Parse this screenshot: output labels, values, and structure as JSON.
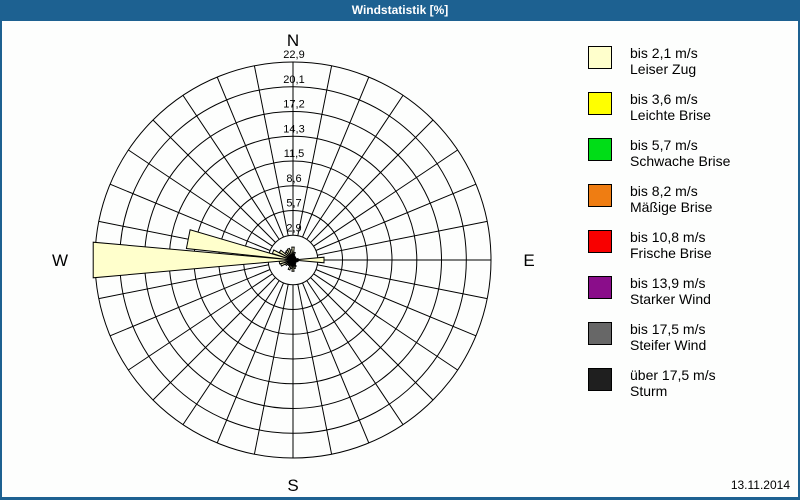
{
  "window": {
    "title": "Windstatistik [%]",
    "date": "13.11.2014"
  },
  "legend": {
    "items": [
      {
        "color": "#ffffcc",
        "speed": "bis 2,1 m/s",
        "name": "Leiser Zug"
      },
      {
        "color": "#ffff00",
        "speed": "bis 3,6 m/s",
        "name": "Leichte Brise"
      },
      {
        "color": "#00dd17",
        "speed": "bis 5,7 m/s",
        "name": "Schwache Brise"
      },
      {
        "color": "#ef7d12",
        "speed": "bis 8,2 m/s",
        "name": "Mäßige Brise"
      },
      {
        "color": "#f80000",
        "speed": "bis 10,8 m/s",
        "name": "Frische Brise"
      },
      {
        "color": "#8a0d8a",
        "speed": "bis 13,9 m/s",
        "name": "Starker Wind"
      },
      {
        "color": "#676767",
        "speed": "bis 17,5 m/s",
        "name": "Steifer Wind"
      },
      {
        "color": "#1f1f1f",
        "speed": "über 17,5 m/s",
        "name": "Sturm",
        "pattern": "dots"
      }
    ]
  },
  "chart_data": {
    "type": "wind-rose-polar-bar",
    "title": "Windstatistik [%]",
    "unit": "%",
    "sectors": 32,
    "direction_step_deg": 11.25,
    "direction_convention": "index 0 = N, clockwise",
    "rings": 8,
    "scale_max": 22.9,
    "ring_values": [
      2.9,
      5.7,
      8.6,
      11.5,
      14.3,
      17.2,
      20.1,
      22.9
    ],
    "ring_tick_labels": [
      "2,9",
      "5,7",
      "8,6",
      "11,5",
      "14,3",
      "17,2",
      "20,1",
      "22,9"
    ],
    "compass_labels": {
      "n": "N",
      "e": "E",
      "s": "S",
      "w": "W"
    },
    "grid_color": "#000000",
    "series": [
      {
        "name": "bis 2,1 m/s (Leiser Zug)",
        "color": "#ffffcc",
        "values": [
          1.5,
          0.9,
          0.5,
          0.4,
          0.4,
          0.3,
          0.4,
          0.6,
          3.6,
          0.6,
          0.5,
          0.3,
          0.4,
          0.5,
          0.8,
          1.0,
          1.3,
          1.0,
          1.2,
          0.8,
          0.8,
          1.0,
          1.5,
          1.6,
          23.2,
          12.4,
          2.5,
          1.8,
          1.2,
          1.3,
          1.4,
          1.2
        ]
      }
    ],
    "notable_values": {
      "W_270deg": 23.2,
      "WbN_281deg": 12.4,
      "E_90deg": 3.6
    }
  }
}
